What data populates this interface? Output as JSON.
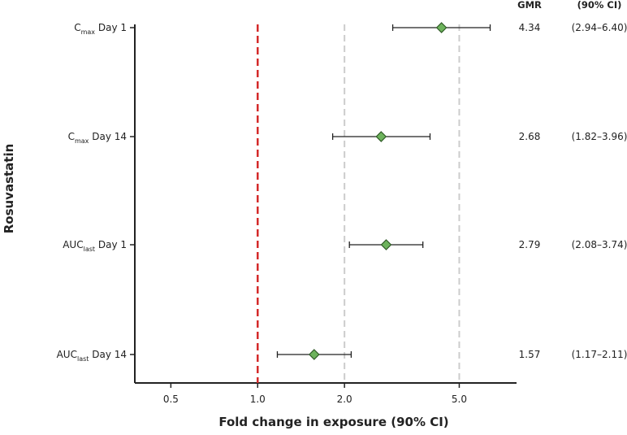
{
  "chart_data": {
    "type": "forest",
    "xlabel": "Fold change in exposure (90% CI)",
    "ylabel": "Rosuvastatin",
    "x_ticks": [
      0.5,
      1.0,
      2.0,
      5.0
    ],
    "x_tick_labels": [
      "0.5",
      "1.0",
      "2.0",
      "5.0"
    ],
    "xlim": [
      0.375,
      7.9
    ],
    "x_scale": "log",
    "reference_line": 1.0,
    "reference_gridlines": [
      2.0,
      5.0
    ],
    "column_headers": {
      "gmr": "GMR",
      "ci": "(90% CI)"
    },
    "rows": [
      {
        "label_main": "C",
        "label_sub": "max",
        "label_rest": " Day 1",
        "gmr": 4.34,
        "lo": 2.94,
        "hi": 6.4,
        "gmr_text": "4.34",
        "ci_text": "(2.94–6.40)"
      },
      {
        "label_main": "C",
        "label_sub": "max",
        "label_rest": " Day 14",
        "gmr": 2.68,
        "lo": 1.82,
        "hi": 3.96,
        "gmr_text": "2.68",
        "ci_text": "(1.82–3.96)"
      },
      {
        "label_main": "AUC",
        "label_sub": "last",
        "label_rest": " Day 1",
        "gmr": 2.79,
        "lo": 2.08,
        "hi": 3.74,
        "gmr_text": "2.79",
        "ci_text": "(2.08–3.74)"
      },
      {
        "label_main": "AUC",
        "label_sub": "last",
        "label_rest": " Day 14",
        "gmr": 1.57,
        "lo": 1.17,
        "hi": 2.11,
        "gmr_text": "1.57",
        "ci_text": "(1.17–2.11)"
      }
    ],
    "colors": {
      "marker_fill": "#6db35c",
      "marker_stroke": "#2f5a26",
      "reference_line": "#d42a2a",
      "gridline": "#cccccc",
      "axis": "#222222",
      "ci_line": "#222222"
    }
  }
}
